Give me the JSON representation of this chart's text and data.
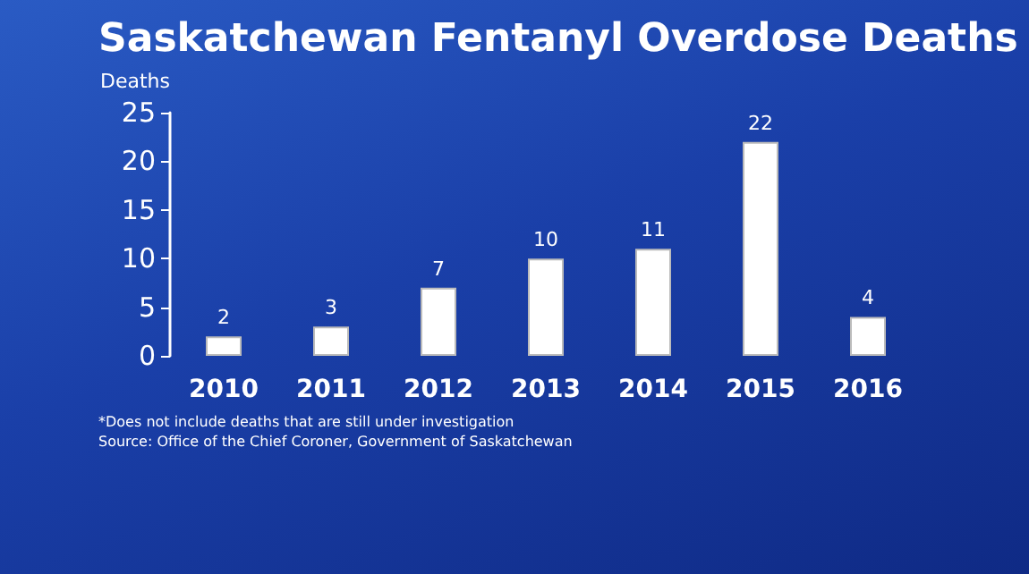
{
  "chart_data": {
    "type": "bar",
    "title": "Saskatchewan Fentanyl Overdose Deaths",
    "ylabel": "Deaths",
    "categories": [
      "2010",
      "2011",
      "2012",
      "2013",
      "2014",
      "2015",
      "2016"
    ],
    "values": [
      2,
      3,
      7,
      10,
      11,
      22,
      4
    ],
    "color": "#ffffff",
    "ylim": [
      0,
      25
    ],
    "yticks": [
      0,
      5,
      10,
      15,
      20,
      25
    ],
    "grid": false,
    "data_labels": true,
    "annotations": [
      "*Does not include deaths that are still under investigation",
      "Source: Office of the Chief Coroner, Government of Saskatchewan"
    ]
  }
}
